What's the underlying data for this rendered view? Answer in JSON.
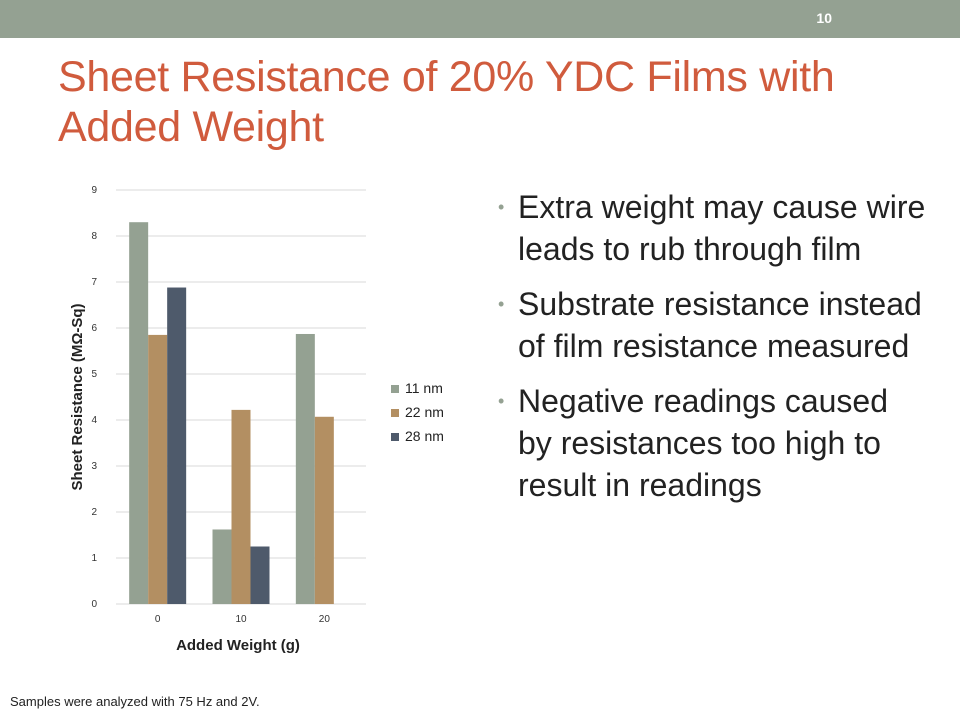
{
  "slide_number": "10",
  "title": "Sheet Resistance of 20% YDC Films with Added Weight",
  "bullets": [
    "Extra weight may cause wire leads to rub through film",
    "Substrate resistance instead of film resistance measured",
    "Negative readings caused by resistances too high to result in readings"
  ],
  "footnote": "Samples were analyzed with 75 Hz and 2V.",
  "colors": {
    "topbar": "#94a192",
    "title": "#d05b3d",
    "bullet": "#94a192"
  },
  "chart_data": {
    "type": "bar",
    "categories": [
      "0",
      "10",
      "20"
    ],
    "series": [
      {
        "name": "11 nm",
        "color": "#94a192",
        "values": [
          8.3,
          1.62,
          5.87
        ]
      },
      {
        "name": "22 nm",
        "color": "#b38f62",
        "values": [
          5.85,
          4.22,
          4.07
        ]
      },
      {
        "name": "28 nm",
        "color": "#4e5a6b",
        "values": [
          6.88,
          1.25,
          null
        ]
      }
    ],
    "xlabel": "Added Weight (g)",
    "ylabel": "Sheet Resistance (MΩ-Sq)",
    "ylim": [
      0,
      9
    ],
    "yticks": [
      "0",
      "1",
      "2",
      "3",
      "4",
      "5",
      "6",
      "7",
      "8",
      "9"
    ],
    "grid": true,
    "legend_position": "right"
  }
}
